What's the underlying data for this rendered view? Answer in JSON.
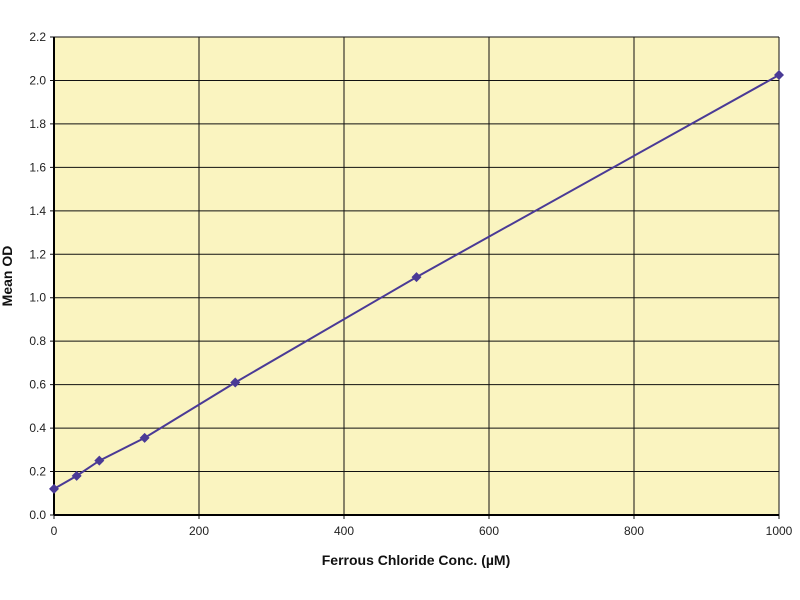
{
  "chart_data": {
    "type": "line",
    "title": "",
    "xlabel": "Ferrous Chloride Conc. (µM)",
    "ylabel": "Mean OD",
    "xlim": [
      0,
      1000
    ],
    "ylim": [
      0,
      2.2
    ],
    "xticks": [
      "0",
      "200",
      "400",
      "600",
      "800",
      "1000"
    ],
    "yticks": [
      "0.0",
      "0.2",
      "0.4",
      "0.6",
      "0.8",
      "1.0",
      "1.2",
      "1.4",
      "1.6",
      "1.8",
      "2.0",
      "2.2"
    ],
    "grid": true,
    "legend": "none",
    "series": [
      {
        "x": [
          0,
          31.25,
          62.5,
          125,
          250,
          500,
          1000
        ],
        "y": [
          0.12,
          0.18,
          0.25,
          0.355,
          0.61,
          1.095,
          2.025
        ],
        "color": "#4a3a96",
        "marker": "diamond"
      }
    ],
    "colors": {
      "plot_background": "#faf4c0",
      "grid": "#111111",
      "series": "#4a3a96"
    }
  }
}
